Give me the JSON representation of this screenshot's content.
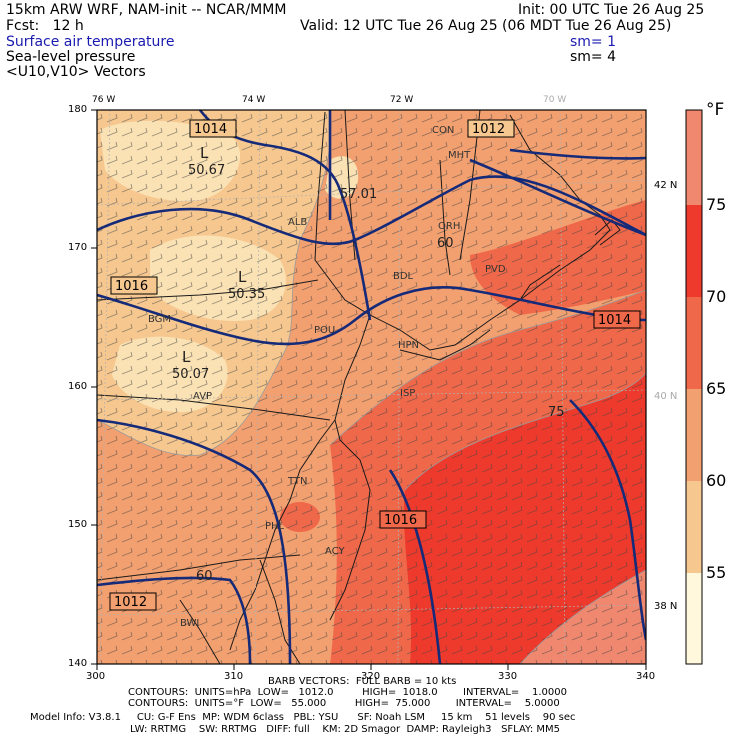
{
  "header": {
    "model_line": "15km ARW WRF, NAM-init -- NCAR/MMM",
    "fcst_line": "Fcst:   12 h",
    "init_line": "Init: 00 UTC Tue 26 Aug 25",
    "valid_line": "Valid: 12 UTC Tue 26 Aug 25 (06 MDT Tue 26 Aug 25)",
    "field1": "Surface air temperature",
    "field2": "Sea-level pressure",
    "field3": "<U10,V10> Vectors",
    "sm1": "sm= 1",
    "sm2": "sm= 4"
  },
  "axes": {
    "x_ticks": [
      "300",
      "310",
      "320",
      "330",
      "340"
    ],
    "y_ticks": [
      "180",
      "170",
      "160",
      "150",
      "140"
    ],
    "lon_labels": [
      "76 W",
      "74 W",
      "72 W",
      "70 W"
    ],
    "lat_labels": [
      "42 N",
      "40 N",
      "38 N"
    ]
  },
  "colorbar": {
    "unit": "°F",
    "labels": [
      "75",
      "70",
      "65",
      "60",
      "55"
    ],
    "colors": [
      "#f08870",
      "#ee3a2c",
      "#f0684a",
      "#f3a070",
      "#f6c890",
      "#fbe2b4",
      "#fff8dc"
    ]
  },
  "pressure_labels": [
    {
      "text": "1014"
    },
    {
      "text": "1012"
    },
    {
      "text": "1016"
    },
    {
      "text": "1014"
    },
    {
      "text": "1016"
    },
    {
      "text": "1012"
    }
  ],
  "lows": [
    {
      "mark": "L",
      "value": "50.67"
    },
    {
      "mark": "L",
      "value": "50.35"
    },
    {
      "mark": "L",
      "value": "50.07"
    }
  ],
  "map_text": [
    {
      "text": "CON"
    },
    {
      "text": "MHT"
    },
    {
      "text": "ALB"
    },
    {
      "text": "ORH"
    },
    {
      "text": "PVD"
    },
    {
      "text": "BDL"
    },
    {
      "text": "BGM"
    },
    {
      "text": "POU"
    },
    {
      "text": "HPN"
    },
    {
      "text": "AVP"
    },
    {
      "text": "ISP"
    },
    {
      "text": "PHL"
    },
    {
      "text": "ACY"
    },
    {
      "text": "BWI"
    },
    {
      "text": "TTN"
    },
    {
      "text": "57.01"
    },
    {
      "text": "60"
    },
    {
      "text": "60"
    },
    {
      "text": "75"
    }
  ],
  "footer": {
    "barb": "BARB VECTORS:  FULL BARB = 10 kts",
    "contours1": "CONTOURS:  UNITS=hPa  LOW=   1012.0         HIGH=  1018.0        INTERVAL=    1.0000",
    "contours2": "CONTOURS:  UNITS=°F  LOW=   55.000         HIGH=  75.000        INTERVAL=    5.0000",
    "model_info1": "Model Info: V3.8.1     CU: G-F Ens  MP: WDM 6class   PBL: YSU      SF: Noah LSM     15 km    51 levels    90 sec",
    "model_info2": "LW: RRTMG    SW: RRTMG   DIFF: full    KM: 2D Smagor  DAMP: Rayleigh3   SFLAY: MM5"
  }
}
